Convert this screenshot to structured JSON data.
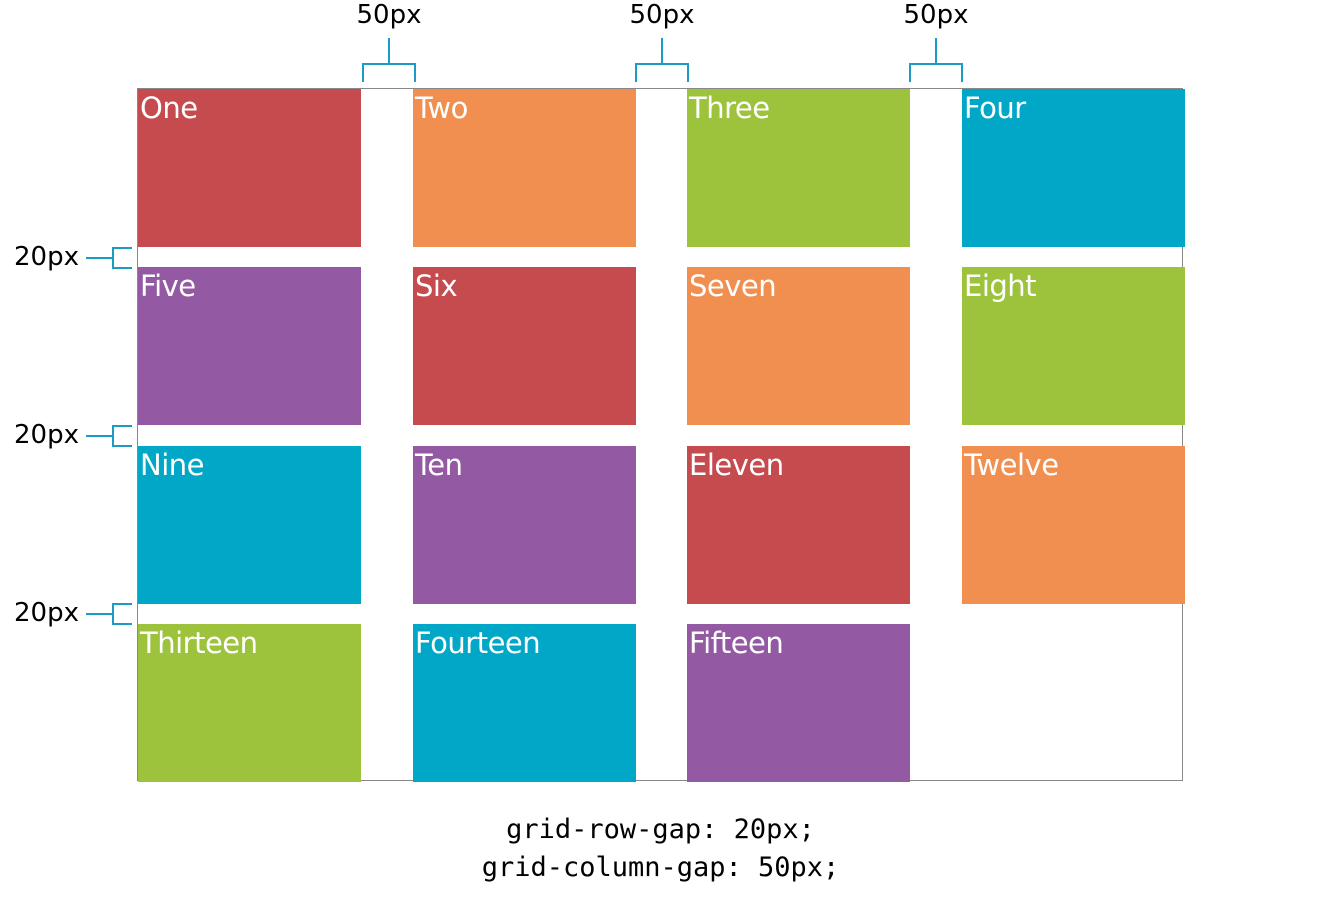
{
  "cells": [
    {
      "label": "One",
      "color": "#c64b4e"
    },
    {
      "label": "Two",
      "color": "#f08f50"
    },
    {
      "label": "Three",
      "color": "#9dc33c"
    },
    {
      "label": "Four",
      "color": "#00a7c6"
    },
    {
      "label": "Five",
      "color": "#9459a3"
    },
    {
      "label": "Six",
      "color": "#c64b4e"
    },
    {
      "label": "Seven",
      "color": "#f08f50"
    },
    {
      "label": "Eight",
      "color": "#9dc33c"
    },
    {
      "label": "Nine",
      "color": "#00a7c6"
    },
    {
      "label": "Ten",
      "color": "#9459a3"
    },
    {
      "label": "Eleven",
      "color": "#c64b4e"
    },
    {
      "label": "Twelve",
      "color": "#f08f50"
    },
    {
      "label": "Thirteen",
      "color": "#9dc33c"
    },
    {
      "label": "Fourteen",
      "color": "#00a7c6"
    },
    {
      "label": "Fifteen",
      "color": "#9459a3"
    }
  ],
  "column_gap_labels": [
    "50px",
    "50px",
    "50px"
  ],
  "row_gap_labels": [
    "20px",
    "20px",
    "20px"
  ],
  "code_lines": [
    "grid-row-gap: 20px;",
    "grid-column-gap: 50px;"
  ],
  "bracket_color": "#1a9cc4",
  "border_color": "#888888"
}
